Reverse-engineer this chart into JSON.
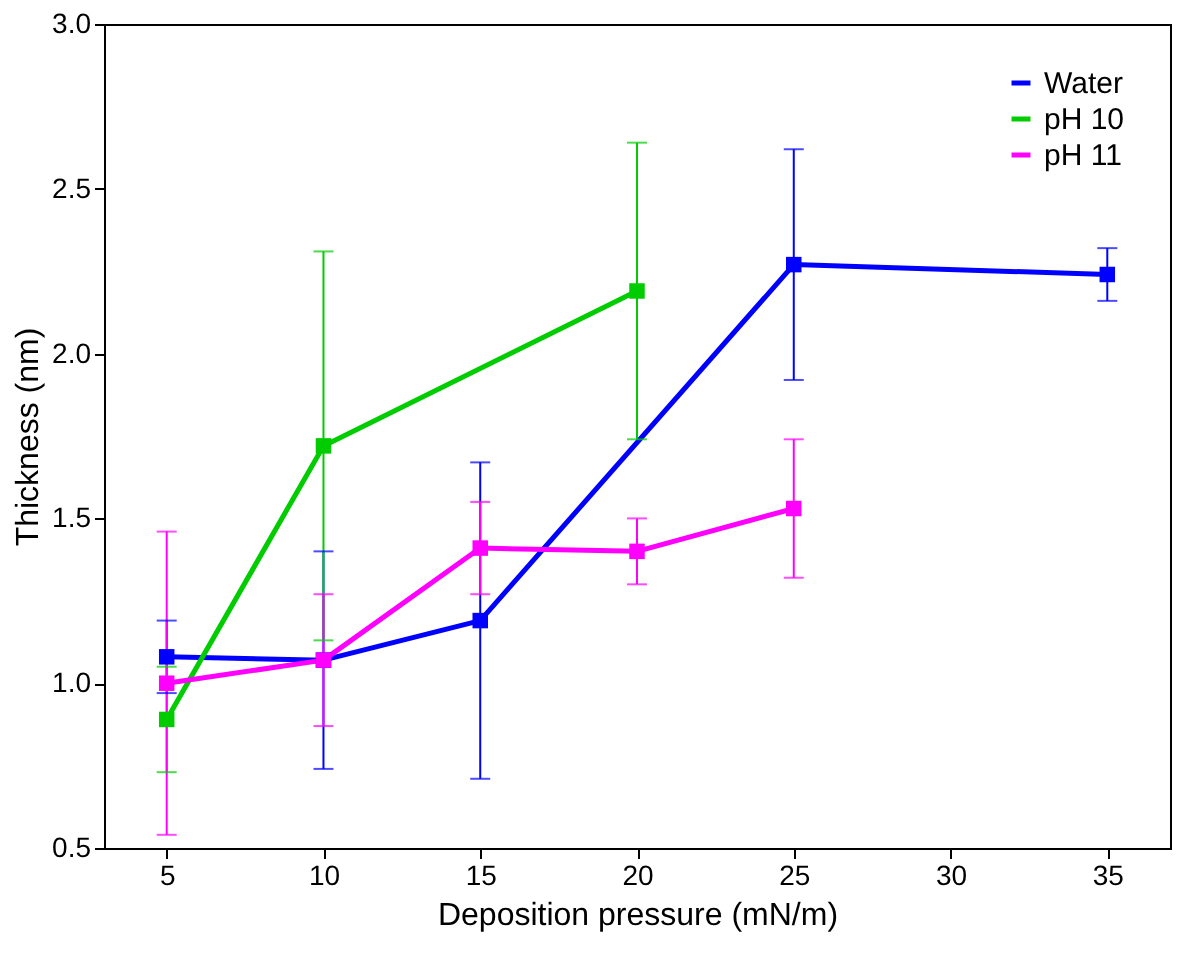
{
  "chart_data": {
    "type": "line",
    "xlabel": "Deposition pressure (mN/m)",
    "ylabel": "Thickness (nm)",
    "xlim": [
      3,
      37
    ],
    "xticks": [
      5,
      10,
      15,
      20,
      25,
      30,
      35
    ],
    "ylim": [
      0.5,
      3.0
    ],
    "yticks": [
      0.5,
      {
        "value": 1,
        "label": "1.0"
      },
      1.5,
      {
        "value": 2,
        "label": "2.0"
      },
      2.5,
      {
        "value": 3,
        "label": "3.0"
      }
    ],
    "marker": "square",
    "line_style": "solid",
    "legend": "top right",
    "grid": false,
    "series": [
      {
        "name": "Water",
        "color": "#0000ff",
        "x": [
          5,
          10,
          15,
          25,
          35
        ],
        "values": [
          1.08,
          1.07,
          1.19,
          2.27,
          2.24
        ],
        "errors": [
          0.11,
          0.33,
          0.48,
          0.35,
          0.08
        ]
      },
      {
        "name": "pH 10",
        "color": "#00cc00",
        "x": [
          5,
          10,
          20
        ],
        "values": [
          0.89,
          1.72,
          2.19
        ],
        "errors": [
          0.16,
          0.59,
          0.45
        ]
      },
      {
        "name": "pH 11",
        "color": "#ff00ff",
        "x": [
          5,
          10,
          15,
          20,
          25
        ],
        "values": [
          1.0,
          1.07,
          1.41,
          1.4,
          1.53
        ],
        "errors": [
          0.46,
          0.2,
          0.14,
          0.1,
          0.21
        ]
      }
    ]
  }
}
